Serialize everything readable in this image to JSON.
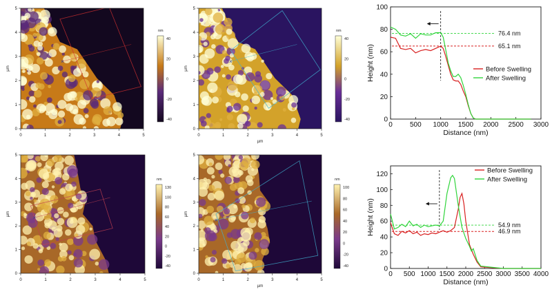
{
  "afm_panels": [
    {
      "x_label": "",
      "y_label": "µm",
      "x_ticks": [
        "0",
        "1",
        "2",
        "3",
        "4",
        "5"
      ],
      "y_ticks": [
        "0",
        "1",
        "2",
        "3",
        "4",
        "5"
      ],
      "colorbar_unit": "nm",
      "colorbar_ticks": [
        "40",
        "20",
        "0",
        "-20",
        "-40"
      ],
      "boundary": [
        [
          0.95,
          5
        ],
        [
          1.3,
          4.2
        ],
        [
          1.6,
          3.6
        ],
        [
          2.3,
          3.3
        ],
        [
          3.1,
          2.1
        ],
        [
          3.8,
          1.4
        ],
        [
          4.15,
          0.4
        ],
        [
          4.05,
          0
        ]
      ],
      "colors": {
        "low": "#13081f",
        "mid1": "#5a2a7a",
        "mid2": "#c77a18",
        "high": "#ffffd6"
      },
      "line_color": "#d03030",
      "line_box": [
        [
          1.6,
          4.55
        ],
        [
          3.6,
          5.05
        ],
        [
          4.9,
          1.75
        ],
        [
          2.9,
          1.25
        ]
      ],
      "profile_line": [
        [
          1.7,
          2.8
        ],
        [
          4.5,
          3.5
        ]
      ],
      "marker": [
        1.7,
        2.8
      ]
    },
    {
      "x_label": "µm",
      "y_label": "µm",
      "x_ticks": [
        "0",
        "1",
        "2",
        "3",
        "4",
        "5"
      ],
      "y_ticks": [
        "0",
        "1",
        "2",
        "3",
        "4",
        "5"
      ],
      "colorbar_unit": "nm",
      "colorbar_ticks": [
        "40",
        "20",
        "0",
        "-20",
        "-40"
      ],
      "boundary": [
        [
          0.95,
          5
        ],
        [
          1.3,
          4.2
        ],
        [
          1.6,
          3.6
        ],
        [
          2.3,
          3.3
        ],
        [
          3.1,
          2.1
        ],
        [
          3.8,
          1.4
        ],
        [
          4.15,
          0.4
        ],
        [
          4.05,
          0
        ]
      ],
      "colors": {
        "low": "#2a1460",
        "mid1": "#6a2f98",
        "mid2": "#d3a22a",
        "high": "#ffffd8"
      },
      "line_color": "#40b0d0",
      "line_box": [
        [
          1.3,
          3.25
        ],
        [
          3.4,
          4.9
        ],
        [
          4.95,
          2.45
        ],
        [
          2.85,
          0.85
        ]
      ],
      "profile_line": [
        [
          1.3,
          2.8
        ],
        [
          4.0,
          3.5
        ]
      ],
      "marker": [
        1.3,
        2.8
      ]
    },
    {
      "x_label": "",
      "y_label": "µm",
      "x_ticks": [
        "0",
        "1",
        "2",
        "3",
        "4",
        "5"
      ],
      "y_ticks": [
        "0",
        "1",
        "2",
        "3",
        "4",
        "5"
      ],
      "colorbar_unit": "nm",
      "colorbar_ticks": [
        "130",
        "100",
        "80",
        "60",
        "40",
        "20",
        "0",
        "-20",
        "-40"
      ],
      "boundary": [
        [
          2.15,
          5
        ],
        [
          2.3,
          4.2
        ],
        [
          2.4,
          3.6
        ],
        [
          2.6,
          3.0
        ],
        [
          2.5,
          2.5
        ],
        [
          2.9,
          2.0
        ],
        [
          3.0,
          1.4
        ],
        [
          3.4,
          0.6
        ],
        [
          3.55,
          0
        ]
      ],
      "colors": {
        "low": "#1e0838",
        "mid1": "#7a3a8a",
        "mid2": "#a86828",
        "high": "#fff2b0"
      },
      "line_color": "#c04050",
      "line_box": [
        [
          0.4,
          2.85
        ],
        [
          3.2,
          3.55
        ],
        [
          3.7,
          1.9
        ],
        [
          0.9,
          1.2
        ]
      ],
      "profile_line": [
        [
          0.55,
          2.35
        ],
        [
          3.6,
          3.2
        ]
      ],
      "marker": [
        0.55,
        2.35
      ]
    },
    {
      "x_label": "µm",
      "y_label": "µm",
      "x_ticks": [
        "0",
        "1",
        "2",
        "3",
        "4",
        "5"
      ],
      "y_ticks": [
        "0",
        "1",
        "2",
        "3",
        "4",
        "5"
      ],
      "colorbar_unit": "nm",
      "colorbar_ticks": [
        "100",
        "80",
        "60",
        "40",
        "20",
        "0",
        "-20",
        "-40"
      ],
      "boundary": [
        [
          2.3,
          5
        ],
        [
          2.45,
          4.2
        ],
        [
          2.5,
          3.5
        ],
        [
          2.85,
          3.0
        ],
        [
          2.6,
          2.5
        ],
        [
          2.8,
          1.9
        ],
        [
          2.9,
          1.3
        ],
        [
          2.6,
          0.6
        ],
        [
          2.55,
          0
        ]
      ],
      "colors": {
        "low": "#1e0838",
        "mid1": "#7a3a8a",
        "mid2": "#a86828",
        "high": "#fff2b0"
      },
      "line_color": "#40b0d0",
      "line_box": [
        [
          0.7,
          2.5
        ],
        [
          4.1,
          4.75
        ],
        [
          4.85,
          0.75
        ],
        [
          1.5,
          0.1
        ]
      ],
      "profile_line": [
        [
          0.7,
          2.25
        ],
        [
          4.6,
          3.05
        ]
      ],
      "marker": [
        0.7,
        2.25
      ]
    }
  ],
  "chart_data": [
    {
      "type": "line",
      "xlabel": "Distance (nm)",
      "ylabel": "Height (nm)",
      "xlim": [
        0,
        3000
      ],
      "ylim": [
        0,
        100
      ],
      "x_ticks": [
        "0",
        "500",
        "1000",
        "1500",
        "2000",
        "2500",
        "3000"
      ],
      "y_ticks": [
        "0",
        "20",
        "40",
        "60",
        "80",
        "100"
      ],
      "legend_position": "right",
      "series": [
        {
          "name": "Before Swelling",
          "color": "#d81f1f",
          "x": [
            0,
            100,
            200,
            300,
            400,
            500,
            600,
            700,
            800,
            900,
            1000,
            1050,
            1100,
            1150,
            1200,
            1250,
            1300,
            1350,
            1400,
            1450,
            1500,
            1550,
            1600,
            1650,
            1700,
            2000,
            2400,
            2800
          ],
          "values": [
            73,
            72,
            63,
            62,
            63,
            59,
            61,
            62,
            61,
            63,
            65,
            63,
            56,
            48,
            40,
            35,
            34,
            34,
            31,
            25,
            20,
            12,
            5,
            1,
            0,
            0,
            0,
            0
          ]
        },
        {
          "name": "After Swelling",
          "color": "#2fd43a",
          "x": [
            0,
            100,
            200,
            300,
            400,
            500,
            600,
            700,
            800,
            900,
            1000,
            1050,
            1100,
            1150,
            1200,
            1250,
            1300,
            1350,
            1400,
            1450,
            1500,
            1550,
            1600,
            1650,
            1700,
            2000,
            2400,
            2800
          ],
          "values": [
            82,
            80,
            75,
            74,
            76,
            72,
            76,
            75,
            75,
            77,
            77,
            73,
            62,
            50,
            43,
            38,
            38,
            40,
            37,
            30,
            22,
            13,
            5,
            1,
            0,
            0,
            0,
            0
          ]
        }
      ],
      "reference_lines": [
        {
          "label": "76.4 nm",
          "y": 76.4,
          "color": "#2fd43a"
        },
        {
          "label": "65.1 nm",
          "y": 65.1,
          "color": "#d81f1f"
        }
      ],
      "vertical_marker_x": 1000,
      "arrow": {
        "y": 85
      }
    },
    {
      "type": "line",
      "xlabel": "Distance (nm)",
      "ylabel": "Height (nm)",
      "xlim": [
        0,
        4000
      ],
      "ylim": [
        0,
        130
      ],
      "x_ticks": [
        "0",
        "500",
        "1000",
        "1500",
        "2000",
        "2500",
        "3000",
        "3500",
        "4000"
      ],
      "y_ticks": [
        "0",
        "20",
        "40",
        "60",
        "80",
        "100",
        "120"
      ],
      "legend_position": "top-right",
      "series": [
        {
          "name": "Before Swelling",
          "color": "#d81f1f",
          "x": [
            0,
            100,
            200,
            300,
            400,
            500,
            600,
            700,
            800,
            900,
            1000,
            1100,
            1200,
            1300,
            1400,
            1500,
            1600,
            1700,
            1800,
            1850,
            1900,
            1950,
            2000,
            2100,
            2200,
            2300,
            2400,
            3000,
            4000
          ],
          "values": [
            58,
            44,
            42,
            47,
            45,
            48,
            44,
            46,
            42,
            44,
            43,
            45,
            44,
            46,
            48,
            46,
            48,
            52,
            75,
            90,
            95,
            82,
            60,
            30,
            18,
            8,
            2,
            0,
            0
          ]
        },
        {
          "name": "After Swelling",
          "color": "#2fd43a",
          "x": [
            0,
            100,
            200,
            300,
            400,
            500,
            600,
            700,
            800,
            900,
            1000,
            1100,
            1200,
            1300,
            1400,
            1500,
            1600,
            1650,
            1700,
            1800,
            1900,
            2000,
            2100,
            2150,
            2200,
            2300,
            2400,
            3000,
            4000
          ],
          "values": [
            69,
            50,
            52,
            56,
            53,
            60,
            54,
            56,
            52,
            55,
            53,
            54,
            55,
            54,
            60,
            95,
            115,
            118,
            114,
            80,
            52,
            38,
            28,
            22,
            25,
            10,
            3,
            0,
            0
          ]
        }
      ],
      "reference_lines": [
        {
          "label": "54.9 nm",
          "y": 54.9,
          "color": "#2fd43a"
        },
        {
          "label": "46.9 nm",
          "y": 46.9,
          "color": "#d81f1f"
        }
      ],
      "vertical_marker_x": 1300,
      "arrow": {
        "y": 82
      }
    }
  ]
}
